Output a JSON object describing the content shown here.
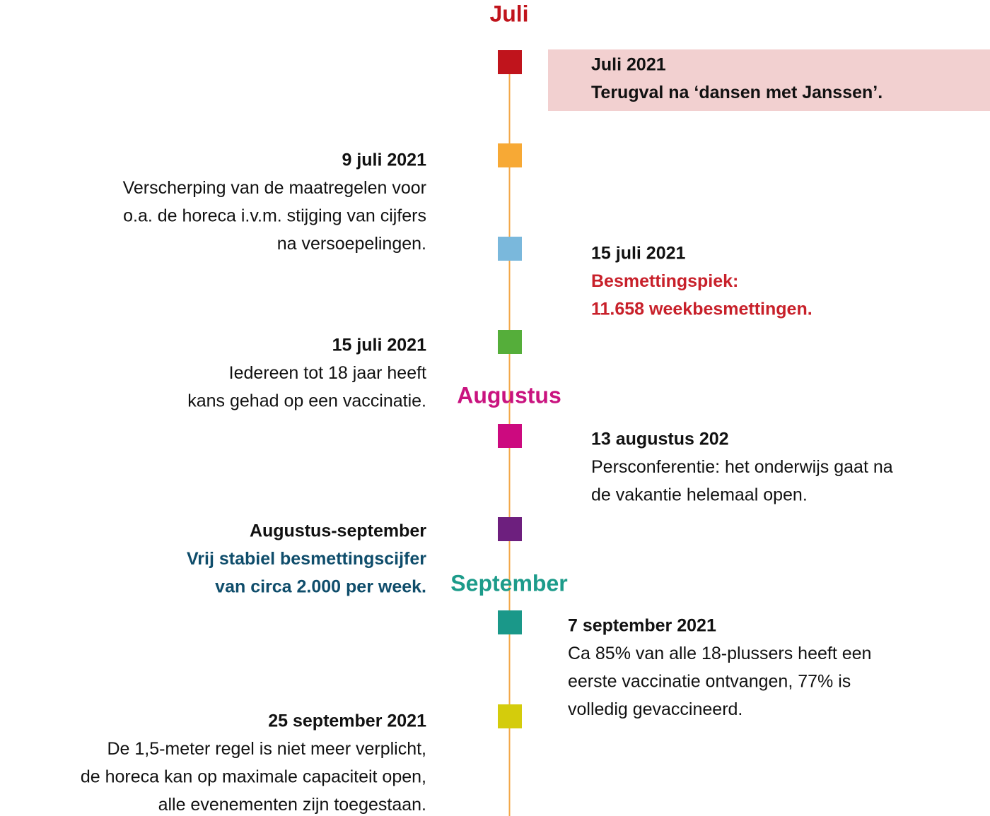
{
  "months": [
    {
      "label": "Juli",
      "color": "#c0141c"
    },
    {
      "label": "Augustus",
      "color": "#c9137f"
    },
    {
      "label": "September",
      "color": "#1c9b8a"
    }
  ],
  "markers": [
    "#c0141c",
    "#f7a935",
    "#7ab8dc",
    "#55ae3a",
    "#cc0a7f",
    "#6d1f7e",
    "#1a9889",
    "#d4cc0c"
  ],
  "events": [
    {
      "title": "Juli 2021",
      "lines": [
        "Terugval na ‘dansen met Janssen’."
      ]
    },
    {
      "title": "9 juli 2021",
      "lines": [
        "Verscherping van de maatregelen voor",
        "o.a. de horeca i.v.m. stijging van cijfers",
        "na versoepelingen."
      ]
    },
    {
      "title": "15 juli 2021",
      "lines": [
        "Besmettingspiek:",
        "11.658 weekbesmettingen."
      ]
    },
    {
      "title": "15 juli 2021",
      "lines": [
        "Iedereen tot 18 jaar heeft",
        "kans gehad op een vaccinatie."
      ]
    },
    {
      "title": "13 augustus 202",
      "lines": [
        "Persconferentie: het onderwijs gaat na",
        "de vakantie helemaal open."
      ]
    },
    {
      "title": "Augustus-september",
      "lines": [
        "Vrij stabiel besmettingscijfer",
        "van circa 2.000 per week."
      ]
    },
    {
      "title": "7 september 2021",
      "lines": [
        "Ca 85% van alle 18-plussers heeft een",
        "eerste vaccinatie ontvangen, 77% is",
        "volledig gevaccineerd."
      ]
    },
    {
      "title": "25 september 2021",
      "lines": [
        "De 1,5-meter regel is niet meer verplicht,",
        "de horeca kan op maximale capaciteit open,",
        "alle evenementen zijn toegestaan."
      ]
    }
  ]
}
